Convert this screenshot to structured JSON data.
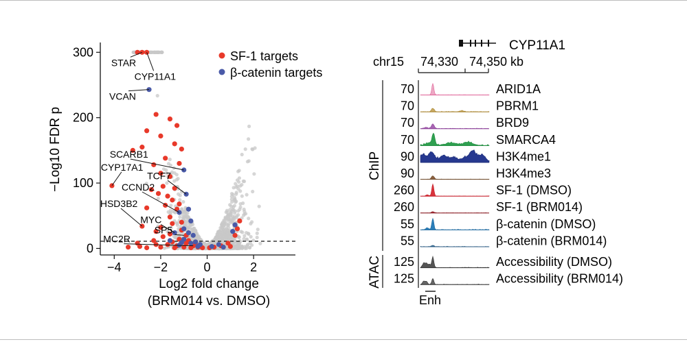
{
  "chart_data": [
    {
      "type": "scatter",
      "title": "",
      "xlabel": "Log2 fold change",
      "xlabel2": "(BRM014 vs. DMSO)",
      "ylabel": "−Log10 FDR p",
      "xlim": [
        -4.6,
        3.8
      ],
      "ylim": [
        -10,
        315
      ],
      "xticks": [
        -4,
        -2,
        0,
        2
      ],
      "xtick_labels": [
        "−4",
        "−2",
        "0",
        "2"
      ],
      "yticks": [
        0,
        100,
        200,
        300
      ],
      "ytick_labels": [
        "0",
        "100",
        "200",
        "300"
      ],
      "threshold_line_y": 0,
      "legend": {
        "placement": "top-right",
        "items": [
          {
            "label": "SF-1 targets",
            "color": "#e8392a"
          },
          {
            "label": "β-catenin targets",
            "color": "#4a5aa8"
          }
        ]
      },
      "colors": {
        "background_points": "#c8c8c8",
        "sf1": "#e8392a",
        "ctnnb1": "#4a5aa8"
      },
      "labeled_genes": [
        {
          "gene": "STAR",
          "x": -2.8,
          "y": 300
        },
        {
          "gene": "CYP11A1",
          "x": -2.6,
          "y": 300
        },
        {
          "gene": "VCAN",
          "x": -2.5,
          "y": 243
        },
        {
          "gene": "SCARB1",
          "x": -1.0,
          "y": 120
        },
        {
          "gene": "CYP17A1",
          "x": -4.1,
          "y": 96
        },
        {
          "gene": "TCF7",
          "x": -0.9,
          "y": 83
        },
        {
          "gene": "CCND2",
          "x": -1.2,
          "y": 55
        },
        {
          "gene": "HSD3B2",
          "x": -2.8,
          "y": 34
        },
        {
          "gene": "MYC",
          "x": -1.4,
          "y": 24
        },
        {
          "gene": "SP5",
          "x": -1.0,
          "y": 20
        },
        {
          "gene": "MC2R",
          "x": -0.6,
          "y": 4
        }
      ],
      "sf1_points": [
        [
          -2.8,
          300
        ],
        [
          -2.6,
          300
        ],
        [
          -3.0,
          300
        ],
        [
          -2.2,
          205
        ],
        [
          -1.6,
          198
        ],
        [
          -1.3,
          188
        ],
        [
          -2.6,
          180
        ],
        [
          -2.0,
          172
        ],
        [
          -1.4,
          160
        ],
        [
          -2.8,
          155
        ],
        [
          -1.1,
          152
        ],
        [
          -3.2,
          150
        ],
        [
          -1.8,
          138
        ],
        [
          -2.3,
          128
        ],
        [
          -2.0,
          115
        ],
        [
          -1.2,
          130
        ],
        [
          -1.6,
          110
        ],
        [
          -4.1,
          96
        ],
        [
          -1.9,
          95
        ],
        [
          -1.4,
          92
        ],
        [
          -2.4,
          90
        ],
        [
          -2.1,
          84
        ],
        [
          -1.7,
          80
        ],
        [
          -1.5,
          74
        ],
        [
          -1.8,
          66
        ],
        [
          -2.6,
          62
        ],
        [
          -1.2,
          68
        ],
        [
          -1.3,
          60
        ],
        [
          -1.6,
          48
        ],
        [
          -1.5,
          38
        ],
        [
          -2.0,
          32
        ],
        [
          -2.8,
          34
        ],
        [
          -2.2,
          26
        ],
        [
          -1.1,
          28
        ],
        [
          -1.9,
          18
        ],
        [
          -2.3,
          12
        ],
        [
          -1.5,
          10
        ],
        [
          -1.2,
          14
        ],
        [
          -1.7,
          6
        ],
        [
          -1.3,
          4
        ],
        [
          -0.9,
          8
        ],
        [
          -1.0,
          2
        ],
        [
          -0.8,
          12
        ],
        [
          -0.6,
          4
        ],
        [
          -0.5,
          6
        ],
        [
          -0.4,
          2
        ],
        [
          -0.3,
          3
        ],
        [
          -0.7,
          1
        ],
        [
          -1.4,
          1
        ],
        [
          -2.0,
          2
        ],
        [
          -2.6,
          1
        ],
        [
          -0.2,
          1
        ],
        [
          0.1,
          1
        ],
        [
          0.3,
          2
        ],
        [
          0.6,
          4
        ],
        [
          0.9,
          8
        ],
        [
          1.0,
          3
        ],
        [
          1.2,
          20
        ],
        [
          1.3,
          30
        ],
        [
          1.4,
          42
        ],
        [
          -3.0,
          8
        ],
        [
          -2.9,
          3
        ],
        [
          -0.5,
          10
        ],
        [
          -0.9,
          20
        ],
        [
          -1.1,
          40
        ],
        [
          -1.6,
          22
        ],
        [
          -2.2,
          6
        ],
        [
          -3.4,
          2
        ]
      ],
      "ctnnb1_points": [
        [
          -2.5,
          243
        ],
        [
          -1.0,
          120
        ],
        [
          -0.9,
          83
        ],
        [
          -0.8,
          60
        ],
        [
          -1.2,
          55
        ],
        [
          -0.7,
          42
        ],
        [
          -1.0,
          30
        ],
        [
          -0.8,
          24
        ],
        [
          -0.6,
          20
        ],
        [
          -1.4,
          24
        ],
        [
          -1.0,
          14
        ],
        [
          -0.5,
          10
        ],
        [
          -0.3,
          6
        ],
        [
          -0.7,
          8
        ],
        [
          -0.4,
          3
        ],
        [
          -1.2,
          5
        ],
        [
          0.2,
          3
        ],
        [
          0.5,
          6
        ],
        [
          0.7,
          2
        ],
        [
          1.2,
          36
        ],
        [
          1.1,
          26
        ],
        [
          -1.6,
          12
        ],
        [
          -1.1,
          9
        ]
      ]
    },
    {
      "type": "genome-tracks",
      "gene": "CYP11A1",
      "chrom": "chr15",
      "ticks": [
        "74,330",
        "74,350 kb"
      ],
      "group_labels": [
        "ChIP",
        "ATAC"
      ],
      "region_label": "Enh",
      "tracks": [
        {
          "label": "ARID1A",
          "scale": "70",
          "group": "ChIP",
          "color": "#e0669a",
          "fill": "#eda8c4",
          "peaks": [
            [
              0.18,
              0.85,
              0.015
            ]
          ],
          "noise": 0.03
        },
        {
          "label": "PBRM1",
          "scale": "70",
          "group": "ChIP",
          "color": "#a8842e",
          "fill": "#c9aa63",
          "peaks": [
            [
              0.18,
              0.25,
              0.02
            ],
            [
              0.6,
              0.08,
              0.03
            ]
          ],
          "noise": 0.05
        },
        {
          "label": "BRD9",
          "scale": "70",
          "group": "ChIP",
          "color": "#8a3f98",
          "fill": "#a865b3",
          "peaks": [
            [
              0.18,
              0.35,
              0.02
            ],
            [
              0.08,
              0.08,
              0.03
            ]
          ],
          "noise": 0.05
        },
        {
          "label": "SMARCA4",
          "scale": "70",
          "group": "ChIP",
          "color": "#1d8a3c",
          "fill": "#2fa050",
          "peaks": [
            [
              0.19,
              0.85,
              0.02
            ],
            [
              0.12,
              0.18,
              0.05
            ],
            [
              0.45,
              0.2,
              0.08
            ],
            [
              0.7,
              0.25,
              0.06
            ]
          ],
          "noise": 0.12
        },
        {
          "label": "H3K4me1",
          "scale": "90",
          "group": "ChIP",
          "color": "#1e2e78",
          "fill": "#26388f",
          "peaks": [
            [
              0.03,
              0.55,
              0.04
            ],
            [
              0.16,
              0.75,
              0.05
            ],
            [
              0.33,
              0.5,
              0.05
            ],
            [
              0.48,
              0.35,
              0.06
            ],
            [
              0.76,
              0.85,
              0.05
            ],
            [
              0.9,
              0.55,
              0.05
            ],
            [
              0.64,
              0.3,
              0.05
            ]
          ],
          "noise": 0.2
        },
        {
          "label": "H3K4me3",
          "scale": "90",
          "group": "ChIP",
          "color": "#6e4a2a",
          "fill": "#8b6140",
          "peaks": [
            [
              0.18,
              0.25,
              0.02
            ]
          ],
          "noise": 0.03
        },
        {
          "label": "SF-1 (DMSO)",
          "scale": "260",
          "group": "ChIP",
          "color": "#c61f2a",
          "fill": "#d8343c",
          "peaks": [
            [
              0.18,
              0.9,
              0.015
            ],
            [
              0.1,
              0.1,
              0.02
            ]
          ],
          "noise": 0.03
        },
        {
          "label": "SF-1 (BRM014)",
          "scale": "260",
          "group": "ChIP",
          "color": "#8a1c24",
          "fill": "#a9303a",
          "peaks": [
            [
              0.18,
              0.1,
              0.02
            ]
          ],
          "noise": 0.03
        },
        {
          "label": "β-catenin (DMSO)",
          "scale": "55",
          "group": "ChIP",
          "color": "#1f6aa0",
          "fill": "#2b7fba",
          "peaks": [
            [
              0.18,
              0.85,
              0.015
            ],
            [
              0.1,
              0.15,
              0.02
            ]
          ],
          "noise": 0.05
        },
        {
          "label": "β-catenin (BRM014)",
          "scale": "55",
          "group": "ChIP",
          "color": "#2a5a80",
          "fill": "#3d7199",
          "peaks": [
            [
              0.18,
              0.1,
              0.02
            ]
          ],
          "noise": 0.04
        },
        {
          "label": "Accessibility (DMSO)",
          "scale": "125",
          "group": "ATAC",
          "color": "#333333",
          "fill": "#555555",
          "peaks": [
            [
              0.18,
              0.8,
              0.015
            ],
            [
              0.05,
              0.35,
              0.02
            ],
            [
              0.09,
              0.3,
              0.015
            ],
            [
              0.13,
              0.25,
              0.015
            ]
          ],
          "noise": 0.05
        },
        {
          "label": "Accessibility (BRM014)",
          "scale": "125",
          "group": "ATAC",
          "color": "#333333",
          "fill": "#666666",
          "peaks": [
            [
              0.18,
              0.45,
              0.015
            ],
            [
              0.05,
              0.25,
              0.02
            ],
            [
              0.09,
              0.2,
              0.015
            ]
          ],
          "noise": 0.04
        }
      ]
    }
  ]
}
